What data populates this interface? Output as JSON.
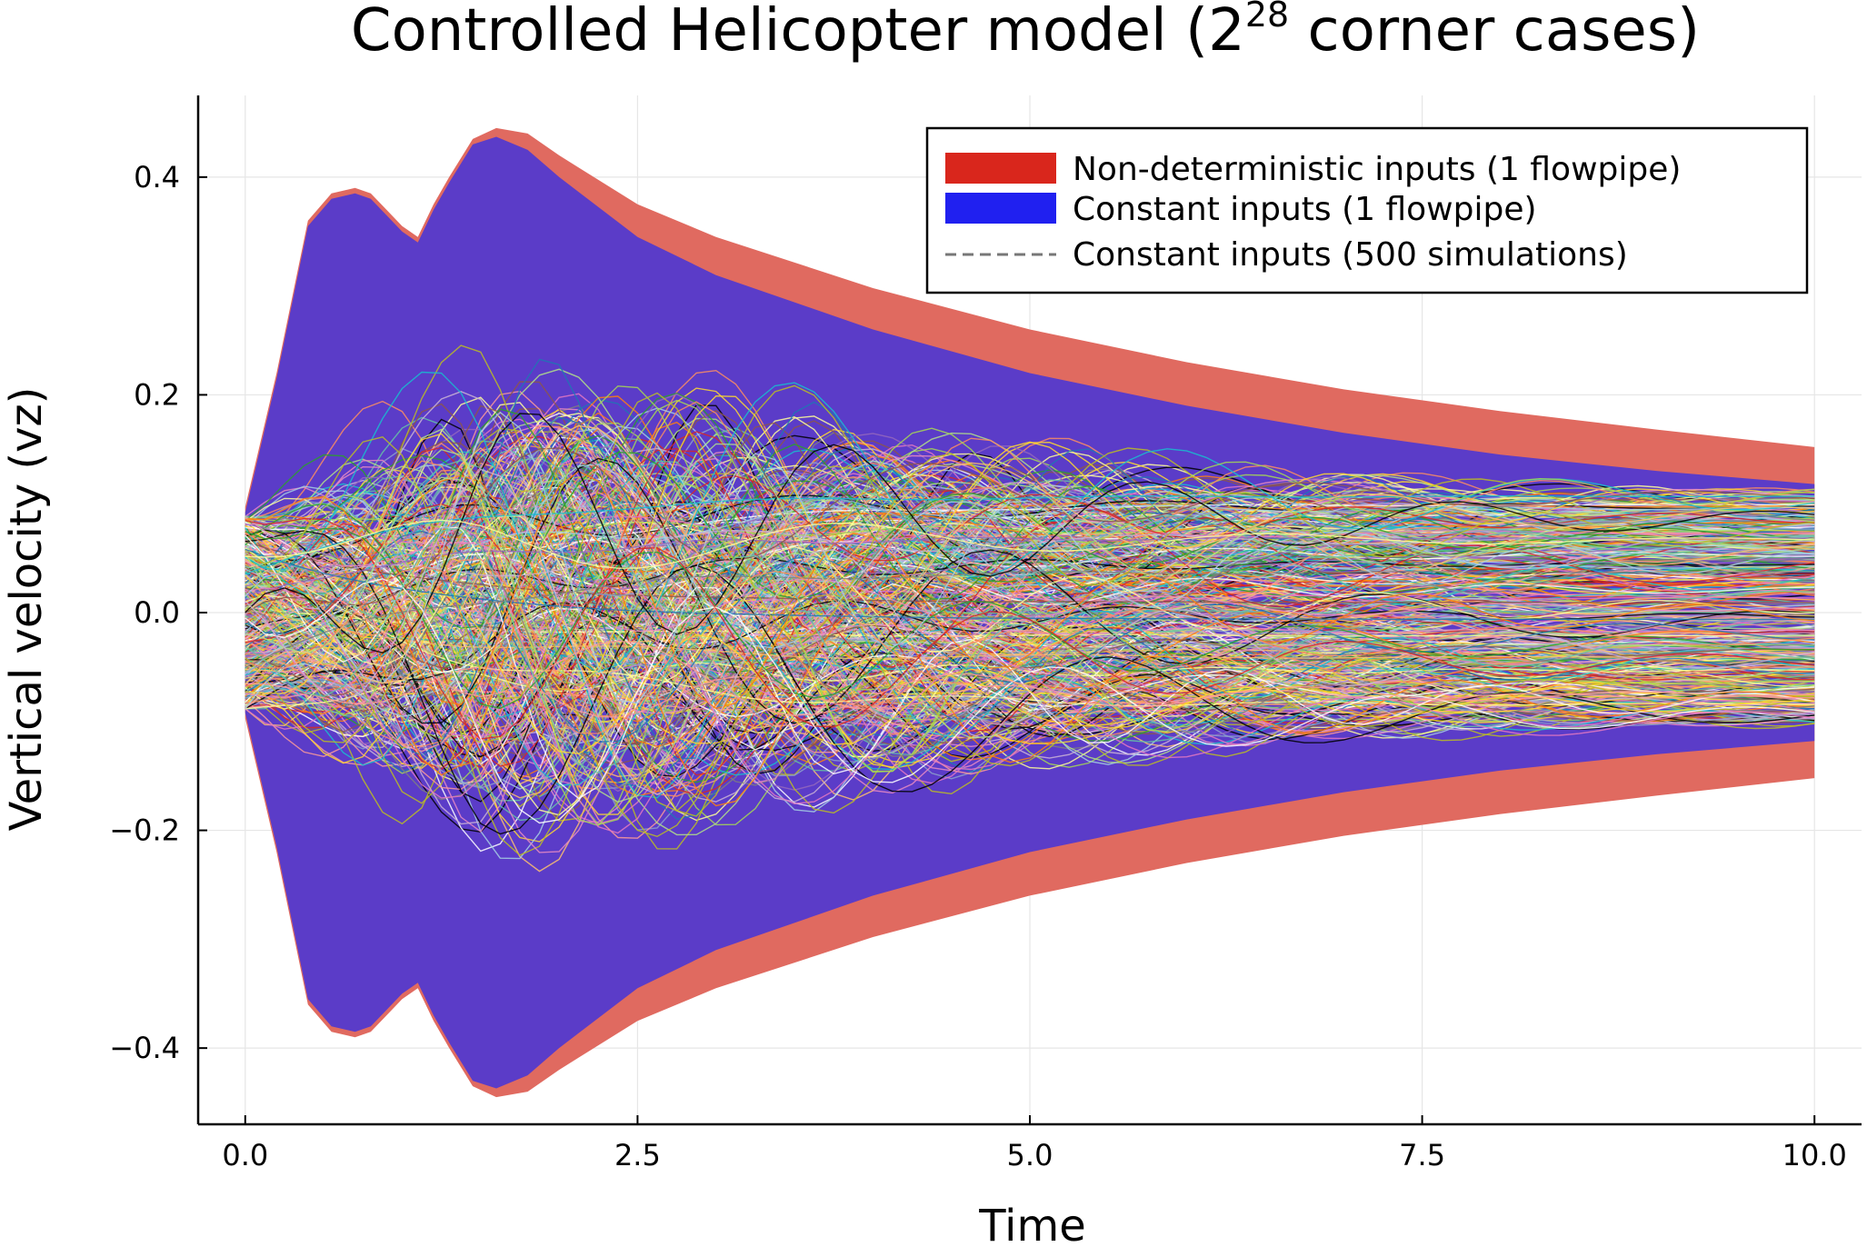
{
  "chart_data": {
    "type": "area",
    "title_main": "Controlled Helicopter model (2",
    "title_sup": "28",
    "title_end": " corner cases)",
    "xlabel": "Time",
    "ylabel": "Vertical velocity (vz)",
    "xlim": [
      -0.3,
      10.3
    ],
    "ylim": [
      -0.47,
      0.475
    ],
    "x_ticks": [
      0,
      2.5,
      5,
      7.5,
      10
    ],
    "x_tick_labels": [
      "0.0",
      "2.5",
      "5.0",
      "7.5",
      "10.0"
    ],
    "y_ticks": [
      -0.4,
      -0.2,
      0,
      0.2,
      0.4
    ],
    "y_tick_labels": [
      "−0.4",
      "−0.2",
      "0.0",
      "0.2",
      "0.4"
    ],
    "grid": true,
    "legend_position": "top-right",
    "series": [
      {
        "name": "Non-deterministic inputs (1 flowpipe)",
        "kind": "band",
        "color": "#e06a60",
        "x": [
          0.0,
          0.2,
          0.4,
          0.55,
          0.7,
          0.8,
          0.9,
          1.0,
          1.1,
          1.2,
          1.3,
          1.45,
          1.6,
          1.8,
          2.0,
          2.5,
          3.0,
          4.0,
          5.0,
          6.0,
          7.0,
          8.0,
          9.0,
          10.0
        ],
        "upper": [
          0.097,
          0.22,
          0.36,
          0.385,
          0.39,
          0.385,
          0.37,
          0.355,
          0.345,
          0.375,
          0.4,
          0.435,
          0.445,
          0.44,
          0.42,
          0.375,
          0.345,
          0.298,
          0.26,
          0.23,
          0.205,
          0.185,
          0.168,
          0.152
        ],
        "lower": [
          -0.097,
          -0.22,
          -0.36,
          -0.385,
          -0.39,
          -0.385,
          -0.37,
          -0.355,
          -0.345,
          -0.375,
          -0.4,
          -0.435,
          -0.445,
          -0.44,
          -0.42,
          -0.375,
          -0.345,
          -0.298,
          -0.26,
          -0.23,
          -0.205,
          -0.185,
          -0.168,
          -0.152
        ]
      },
      {
        "name": "Constant inputs (1 flowpipe)",
        "kind": "band",
        "color": "#5b3cc8",
        "x": [
          0.0,
          0.2,
          0.4,
          0.55,
          0.7,
          0.8,
          0.9,
          1.0,
          1.1,
          1.2,
          1.3,
          1.45,
          1.6,
          1.8,
          2.0,
          2.5,
          3.0,
          4.0,
          5.0,
          6.0,
          7.0,
          8.0,
          9.0,
          10.0
        ],
        "upper": [
          0.092,
          0.215,
          0.355,
          0.38,
          0.385,
          0.38,
          0.365,
          0.35,
          0.34,
          0.37,
          0.395,
          0.43,
          0.437,
          0.425,
          0.4,
          0.345,
          0.31,
          0.26,
          0.22,
          0.19,
          0.165,
          0.145,
          0.13,
          0.118
        ],
        "lower": [
          -0.092,
          -0.215,
          -0.355,
          -0.38,
          -0.385,
          -0.38,
          -0.365,
          -0.35,
          -0.34,
          -0.37,
          -0.395,
          -0.43,
          -0.437,
          -0.425,
          -0.4,
          -0.345,
          -0.31,
          -0.26,
          -0.22,
          -0.19,
          -0.165,
          -0.145,
          -0.13,
          -0.118
        ]
      },
      {
        "name": "Constant inputs (500 simulations)",
        "kind": "simulations",
        "color": "#888888",
        "count": 500,
        "x_range": [
          0,
          10
        ],
        "y_start_range": [
          -0.09,
          0.09
        ],
        "y_end_range": [
          -0.1,
          0.11
        ]
      }
    ],
    "legend": {
      "swatch_colors": [
        "#d9261c",
        "#2020f0",
        "#777777"
      ]
    },
    "simulation_palette": [
      "#1f77b4",
      "#ff7f0e",
      "#2ca02c",
      "#d62728",
      "#9467bd",
      "#8c564b",
      "#e377c2",
      "#7f7f7f",
      "#bcbd22",
      "#17becf",
      "#000000",
      "#ffffff",
      "#a6cee3",
      "#b2df8a",
      "#fb9a99",
      "#fdbf6f",
      "#cab2d6",
      "#ffff99",
      "#66c2a5",
      "#fc8d62",
      "#8da0cb",
      "#e78ac3",
      "#a6d854",
      "#ffd92f"
    ]
  }
}
